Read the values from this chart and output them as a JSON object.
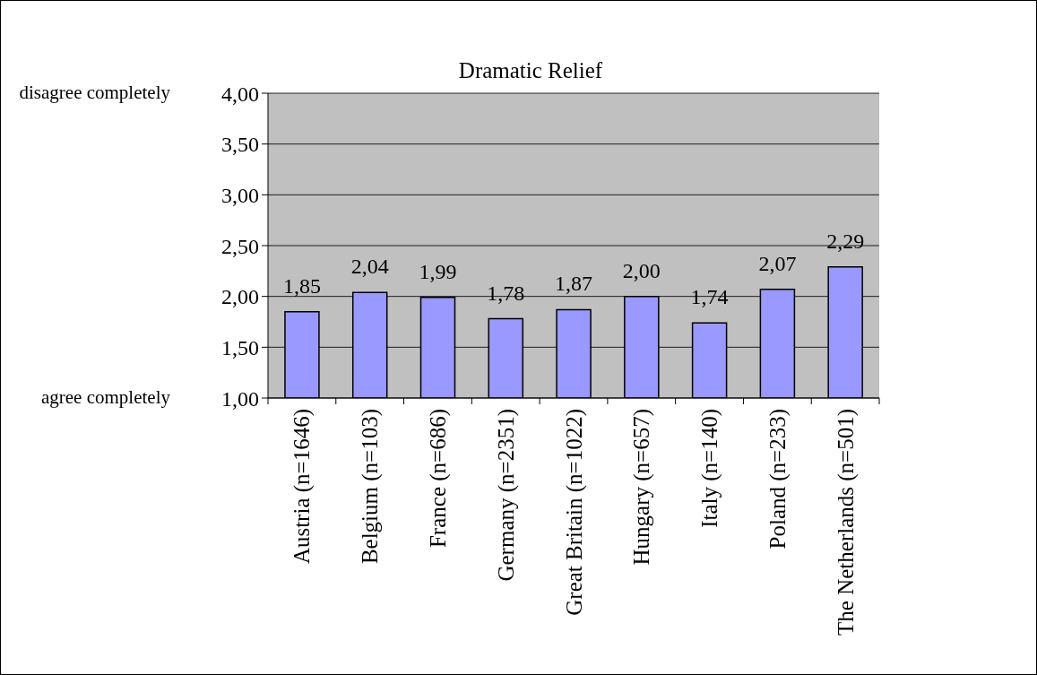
{
  "chart_data": {
    "type": "bar",
    "title": "Dramatic Relief",
    "categories": [
      "Austria (n=1646)",
      "Belgium (n=103)",
      "France (n=686)",
      "Germany (n=2351)",
      "Great Britain (n=1022)",
      "Hungary (n=657)",
      "Italy (n=140)",
      "Poland (n=233)",
      "The Netherlands (n=501)"
    ],
    "values": [
      1.85,
      2.04,
      1.99,
      1.78,
      1.87,
      2.0,
      1.74,
      2.07,
      2.29
    ],
    "value_labels": [
      "1,85",
      "2,04",
      "1,99",
      "1,78",
      "1,87",
      "2,00",
      "1,74",
      "2,07",
      "2,29"
    ],
    "color": "#9999ff",
    "ylim": [
      1,
      4
    ],
    "yticks": [
      {
        "value": 1,
        "label": "1,00"
      },
      {
        "value": 1.5,
        "label": "1,50"
      },
      {
        "value": 2,
        "label": "2,00"
      },
      {
        "value": 2.5,
        "label": "2,50"
      },
      {
        "value": 3,
        "label": "3,00"
      },
      {
        "value": 3.5,
        "label": "3,50"
      },
      {
        "value": 4,
        "label": "4,00"
      }
    ],
    "grid": "y",
    "annotations": [
      "disagree completely",
      "agree completely"
    ]
  }
}
